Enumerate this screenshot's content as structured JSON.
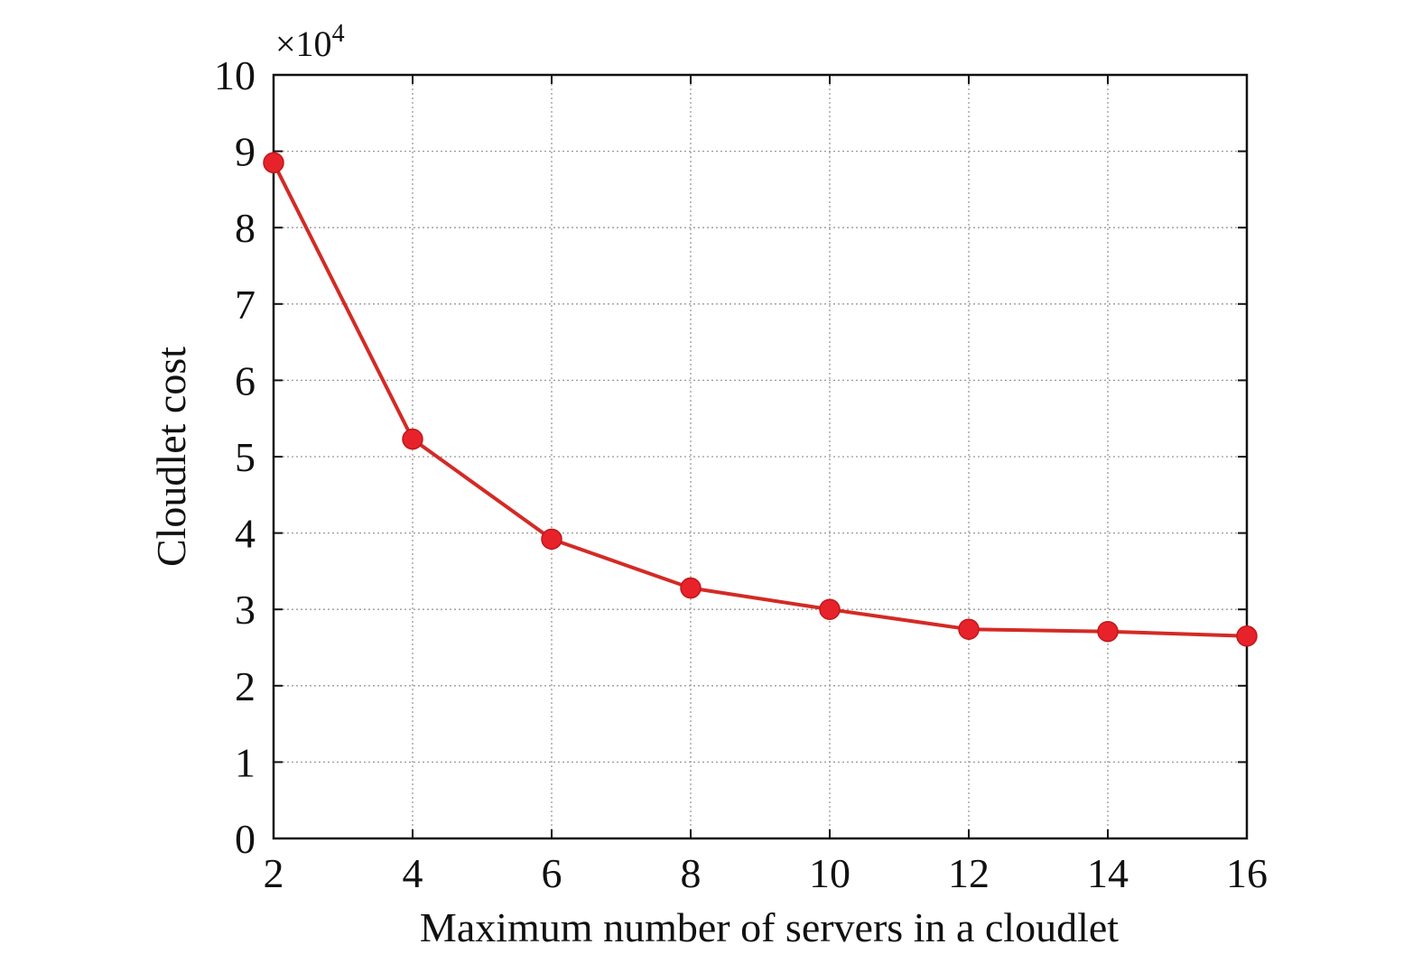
{
  "chart_data": {
    "type": "line",
    "x": [
      2,
      4,
      6,
      8,
      10,
      12,
      14,
      16
    ],
    "series": [
      {
        "values": [
          88500,
          52300,
          39200,
          32800,
          30000,
          27400,
          27100,
          26500
        ]
      }
    ],
    "xlabel": "Maximum number of servers in a cloudlet",
    "ylabel": "Cloudlet cost",
    "y_multiplier_label": "×10",
    "y_multiplier_exponent": "4",
    "y_multiplier": 10000,
    "xlim": [
      2,
      16
    ],
    "ylim": [
      0,
      100000
    ],
    "x_ticks": [
      2,
      4,
      6,
      8,
      10,
      12,
      14,
      16
    ],
    "y_ticks": [
      0,
      1,
      2,
      3,
      4,
      5,
      6,
      7,
      8,
      9,
      10
    ],
    "grid": true,
    "colors": {
      "line": "#d42a25",
      "marker": "#e8222a",
      "grid": "#9a9a9a",
      "axes": "#111111"
    }
  }
}
